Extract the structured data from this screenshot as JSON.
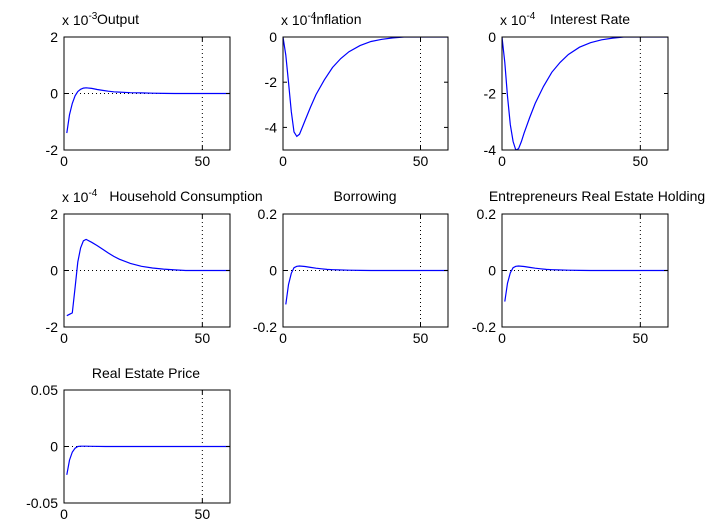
{
  "figure": {
    "background": "#ffffff",
    "line_color": "#0000ff",
    "axis_color": "#000000"
  },
  "chart_data": [
    {
      "type": "line",
      "title": "Output",
      "exponent": {
        "base": "x 10",
        "power": "-3"
      },
      "xlim": [
        0,
        60
      ],
      "ylim": [
        -2,
        2
      ],
      "xticks": [
        0,
        50
      ],
      "xtick_labels": [
        "0",
        "50"
      ],
      "yticks": [
        -2,
        0,
        2
      ],
      "ytick_labels": [
        "-2",
        "0",
        "2"
      ],
      "vline_x": 50,
      "zero_line": true,
      "series": [
        {
          "x": [
            1,
            2,
            3,
            4,
            5,
            6,
            7,
            8,
            10,
            12,
            14,
            16,
            18,
            20,
            24,
            28,
            32,
            36,
            40,
            50,
            60
          ],
          "y": [
            -1.4,
            -0.75,
            -0.35,
            -0.08,
            0.07,
            0.15,
            0.19,
            0.2,
            0.18,
            0.14,
            0.11,
            0.08,
            0.06,
            0.05,
            0.03,
            0.02,
            0.01,
            0.005,
            0.0,
            0.0,
            0.0
          ]
        }
      ]
    },
    {
      "type": "line",
      "title": "Inflation",
      "exponent": {
        "base": "x 10",
        "power": "-4"
      },
      "xlim": [
        0,
        60
      ],
      "ylim": [
        -5,
        0
      ],
      "xticks": [
        0,
        50
      ],
      "xtick_labels": [
        "0",
        "50"
      ],
      "yticks": [
        -4,
        -2,
        0
      ],
      "ytick_labels": [
        "-4",
        "-2",
        "0"
      ],
      "vline_x": 50,
      "zero_line": false,
      "series": [
        {
          "x": [
            0,
            1,
            2,
            3,
            4,
            5,
            6,
            7,
            8,
            10,
            12,
            15,
            18,
            21,
            24,
            28,
            32,
            36,
            40,
            44,
            50,
            60
          ],
          "y": [
            0.0,
            -0.8,
            -2.0,
            -3.3,
            -4.2,
            -4.4,
            -4.3,
            -4.0,
            -3.7,
            -3.1,
            -2.55,
            -1.9,
            -1.35,
            -0.95,
            -0.65,
            -0.38,
            -0.2,
            -0.1,
            -0.04,
            0.0,
            0.0,
            0.0
          ]
        }
      ]
    },
    {
      "type": "line",
      "title": "Interest Rate",
      "exponent": {
        "base": "x 10",
        "power": "-4"
      },
      "xlim": [
        0,
        60
      ],
      "ylim": [
        -4,
        0
      ],
      "xticks": [
        0,
        50
      ],
      "xtick_labels": [
        "0",
        "50"
      ],
      "yticks": [
        -4,
        -2,
        0
      ],
      "ytick_labels": [
        "-4",
        "-2",
        "0"
      ],
      "vline_x": 50,
      "zero_line": false,
      "series": [
        {
          "x": [
            0,
            1,
            2,
            3,
            4,
            5,
            6,
            7,
            8,
            10,
            12,
            15,
            18,
            21,
            24,
            28,
            32,
            36,
            40,
            44,
            50,
            60
          ],
          "y": [
            0.0,
            -0.9,
            -2.1,
            -3.1,
            -3.7,
            -4.0,
            -3.95,
            -3.7,
            -3.4,
            -2.85,
            -2.35,
            -1.75,
            -1.25,
            -0.9,
            -0.62,
            -0.36,
            -0.2,
            -0.1,
            -0.04,
            0.0,
            0.0,
            0.0
          ]
        }
      ]
    },
    {
      "type": "line",
      "title": "Household Consumption",
      "exponent": {
        "base": "x 10",
        "power": "-4"
      },
      "xlim": [
        0,
        60
      ],
      "ylim": [
        -2,
        2
      ],
      "xticks": [
        0,
        50
      ],
      "xtick_labels": [
        "0",
        "50"
      ],
      "yticks": [
        -2,
        0,
        2
      ],
      "ytick_labels": [
        "-2",
        "0",
        "2"
      ],
      "vline_x": 50,
      "zero_line": true,
      "series": [
        {
          "x": [
            1,
            2,
            3,
            4,
            5,
            6,
            7,
            8,
            10,
            12,
            14,
            16,
            18,
            20,
            24,
            28,
            32,
            36,
            40,
            44,
            50,
            60
          ],
          "y": [
            -1.6,
            -1.55,
            -1.5,
            -0.6,
            0.3,
            0.8,
            1.05,
            1.1,
            1.0,
            0.88,
            0.75,
            0.62,
            0.5,
            0.4,
            0.25,
            0.15,
            0.09,
            0.05,
            0.02,
            0.0,
            0.0,
            0.0
          ]
        }
      ]
    },
    {
      "type": "line",
      "title": "Borrowing",
      "xlim": [
        0,
        60
      ],
      "ylim": [
        -0.2,
        0.2
      ],
      "xticks": [
        0,
        50
      ],
      "xtick_labels": [
        "0",
        "50"
      ],
      "yticks": [
        -0.2,
        0,
        0.2
      ],
      "ytick_labels": [
        "-0.2",
        "0",
        "0.2"
      ],
      "vline_x": 50,
      "zero_line": true,
      "series": [
        {
          "x": [
            1,
            2,
            3,
            4,
            5,
            6,
            8,
            10,
            12,
            14,
            16,
            18,
            20,
            24,
            28,
            32,
            40,
            50,
            60
          ],
          "y": [
            -0.12,
            -0.05,
            -0.01,
            0.01,
            0.015,
            0.016,
            0.014,
            0.011,
            0.008,
            0.006,
            0.004,
            0.003,
            0.002,
            0.001,
            0.0005,
            0.0,
            0.0,
            0.0,
            0.0
          ]
        }
      ]
    },
    {
      "type": "line",
      "title": "Entrepreneurs Real Estate Holding",
      "xlim": [
        0,
        60
      ],
      "ylim": [
        -0.2,
        0.2
      ],
      "xticks": [
        0,
        50
      ],
      "xtick_labels": [
        "0",
        "50"
      ],
      "yticks": [
        -0.2,
        0,
        0.2
      ],
      "ytick_labels": [
        "-0.2",
        "0",
        "0.2"
      ],
      "vline_x": 50,
      "zero_line": true,
      "series": [
        {
          "x": [
            1,
            2,
            3,
            4,
            5,
            6,
            8,
            10,
            12,
            14,
            16,
            18,
            20,
            24,
            28,
            32,
            40,
            50,
            60
          ],
          "y": [
            -0.11,
            -0.045,
            -0.008,
            0.01,
            0.015,
            0.016,
            0.014,
            0.011,
            0.008,
            0.006,
            0.004,
            0.003,
            0.002,
            0.001,
            0.0005,
            0.0,
            0.0,
            0.0,
            0.0
          ]
        }
      ]
    },
    {
      "type": "line",
      "title": "Real Estate Price",
      "xlim": [
        0,
        60
      ],
      "ylim": [
        -0.05,
        0.05
      ],
      "xticks": [
        0,
        50
      ],
      "xtick_labels": [
        "0",
        "50"
      ],
      "yticks": [
        -0.05,
        0,
        0.05
      ],
      "ytick_labels": [
        "-0.05",
        "0",
        "0.05"
      ],
      "vline_x": 50,
      "zero_line": true,
      "series": [
        {
          "x": [
            1,
            2,
            3,
            4,
            5,
            6,
            8,
            10,
            15,
            20,
            30,
            40,
            50,
            60
          ],
          "y": [
            -0.025,
            -0.012,
            -0.005,
            -0.0015,
            0.0,
            0.0003,
            0.0003,
            0.0002,
            0.0,
            0.0,
            0.0,
            0.0,
            0.0,
            0.0
          ]
        }
      ]
    }
  ]
}
